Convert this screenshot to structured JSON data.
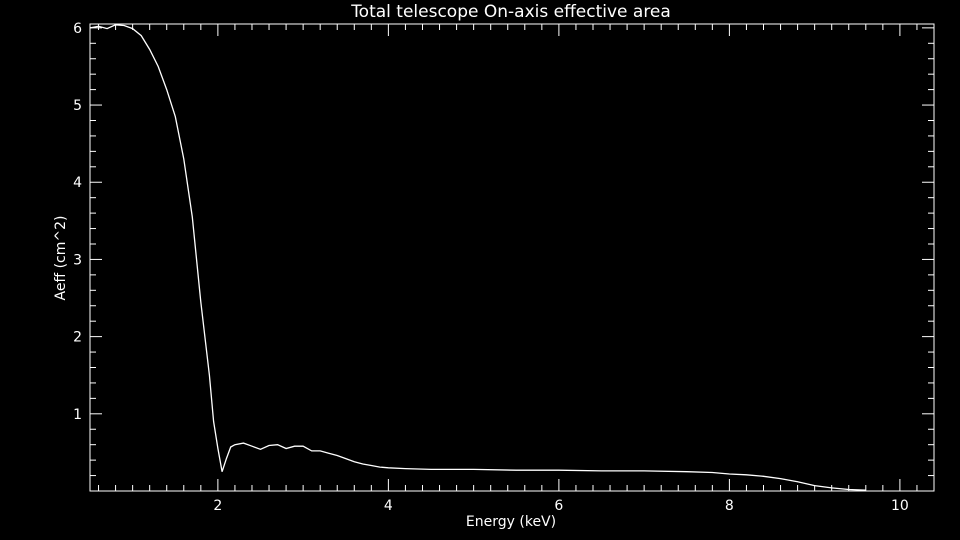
{
  "chart_data": {
    "type": "line",
    "title": "Total telescope On-axis effective area",
    "xlabel": "Energy (keV)",
    "ylabel": "Aeff (cm^2)",
    "xlim": [
      0.5,
      10.4
    ],
    "ylim": [
      0,
      6.05
    ],
    "x_major_ticks": [
      2,
      4,
      6,
      8,
      10
    ],
    "y_major_ticks": [
      1,
      2,
      3,
      4,
      5,
      6
    ],
    "grid": false,
    "legend": "none",
    "colors": {
      "background": "#000000",
      "foreground": "#ffffff",
      "line": "#ffffff"
    },
    "series": [
      {
        "x": [
          0.5,
          0.6,
          0.7,
          0.8,
          0.9,
          1.0,
          1.1,
          1.2,
          1.3,
          1.4,
          1.5,
          1.6,
          1.7,
          1.8,
          1.9,
          1.95,
          2.0,
          2.05,
          2.1,
          2.15,
          2.2,
          2.3,
          2.4,
          2.5,
          2.6,
          2.7,
          2.8,
          2.9,
          3.0,
          3.1,
          3.2,
          3.3,
          3.4,
          3.5,
          3.6,
          3.7,
          3.8,
          3.9,
          4.0,
          4.2,
          4.5,
          5.0,
          5.5,
          6.0,
          6.5,
          7.0,
          7.5,
          7.8,
          8.0,
          8.2,
          8.4,
          8.6,
          8.8,
          9.0,
          9.2,
          9.4,
          9.6
        ],
        "y": [
          6.0,
          6.02,
          5.99,
          6.04,
          6.03,
          5.99,
          5.9,
          5.72,
          5.5,
          5.2,
          4.85,
          4.3,
          3.55,
          2.45,
          1.5,
          0.9,
          0.55,
          0.25,
          0.42,
          0.57,
          0.6,
          0.62,
          0.58,
          0.54,
          0.59,
          0.6,
          0.55,
          0.58,
          0.58,
          0.52,
          0.52,
          0.49,
          0.46,
          0.42,
          0.38,
          0.35,
          0.33,
          0.31,
          0.3,
          0.29,
          0.28,
          0.28,
          0.27,
          0.27,
          0.26,
          0.26,
          0.25,
          0.24,
          0.22,
          0.21,
          0.19,
          0.16,
          0.12,
          0.07,
          0.04,
          0.02,
          0.01
        ]
      }
    ]
  }
}
